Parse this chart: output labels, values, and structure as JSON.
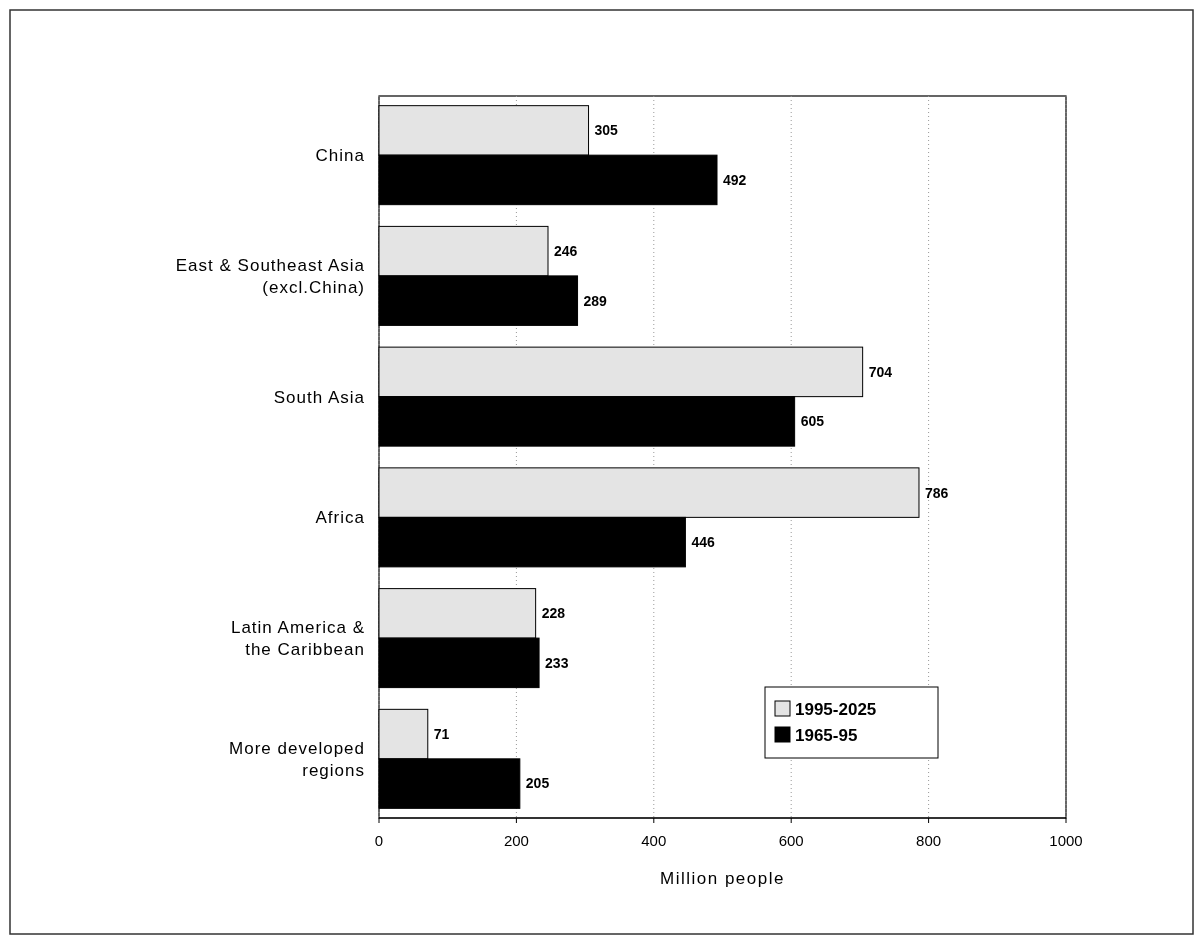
{
  "chart_data": {
    "type": "bar",
    "orientation": "horizontal",
    "xlabel": "Million people",
    "categories": [
      "China",
      "East & Southeast Asia\n(excl.China)",
      "South Asia",
      "Africa",
      "Latin America &\nthe Caribbean",
      "More developed\nregions"
    ],
    "series": [
      {
        "name": "1995-2025",
        "color": "#e4e4e4",
        "values": [
          305,
          246,
          704,
          786,
          228,
          71
        ]
      },
      {
        "name": "1965-95",
        "color": "#000000",
        "values": [
          492,
          289,
          605,
          446,
          233,
          205
        ]
      }
    ],
    "xlim": [
      0,
      1000
    ],
    "xticks": [
      0,
      200,
      400,
      600,
      800,
      1000
    ],
    "grid": "x",
    "legend": "bottom right",
    "data_labels": true
  }
}
